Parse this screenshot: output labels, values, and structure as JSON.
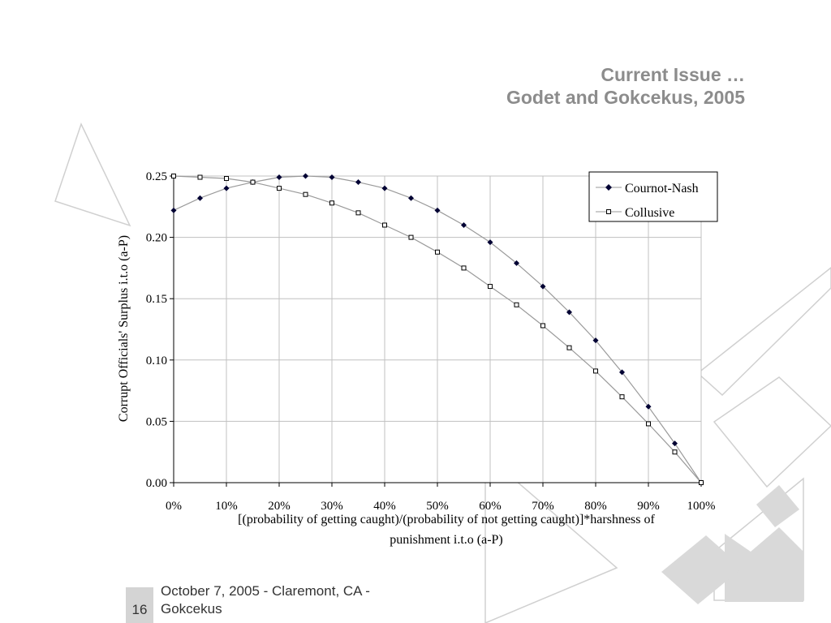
{
  "slide": {
    "title_line1": "Current Issue …",
    "title_line2": "Godet and Gokcekus, 2005",
    "footer": "October 7, 2005 - Claremont, CA - Gokcekus",
    "page_number": "16"
  },
  "chart_data": {
    "type": "line",
    "title": "",
    "xlabel": "[(probability of getting caught)/(probability of not getting caught)]*harshness of punishment i.t.o (a-P)",
    "ylabel": "Corrupt Officials' Surplus i.t.o (a-P)",
    "x": [
      0,
      0.05,
      0.1,
      0.15,
      0.2,
      0.25,
      0.3,
      0.35,
      0.4,
      0.45,
      0.5,
      0.55,
      0.6,
      0.65,
      0.7,
      0.75,
      0.8,
      0.85,
      0.9,
      0.95,
      1.0
    ],
    "xlim": [
      0,
      1
    ],
    "ylim": [
      0,
      0.25
    ],
    "x_ticks": [
      "0%",
      "10%",
      "20%",
      "30%",
      "40%",
      "50%",
      "60%",
      "70%",
      "80%",
      "90%",
      "100%"
    ],
    "y_ticks": [
      "0.00",
      "0.05",
      "0.10",
      "0.15",
      "0.20",
      "0.25"
    ],
    "grid": true,
    "legend_position": "top-right",
    "series": [
      {
        "name": "Cournot-Nash",
        "marker": "filled-diamond",
        "color": "#000033",
        "values": [
          0.222,
          0.232,
          0.24,
          0.245,
          0.249,
          0.25,
          0.249,
          0.245,
          0.24,
          0.232,
          0.222,
          0.21,
          0.196,
          0.179,
          0.16,
          0.139,
          0.116,
          0.09,
          0.062,
          0.032,
          0.0
        ]
      },
      {
        "name": "Collusive",
        "marker": "open-square",
        "color": "#000000",
        "values": [
          0.25,
          0.249,
          0.248,
          0.245,
          0.24,
          0.235,
          0.228,
          0.22,
          0.21,
          0.2,
          0.188,
          0.175,
          0.16,
          0.145,
          0.128,
          0.11,
          0.091,
          0.07,
          0.048,
          0.025,
          0.0
        ]
      }
    ]
  }
}
